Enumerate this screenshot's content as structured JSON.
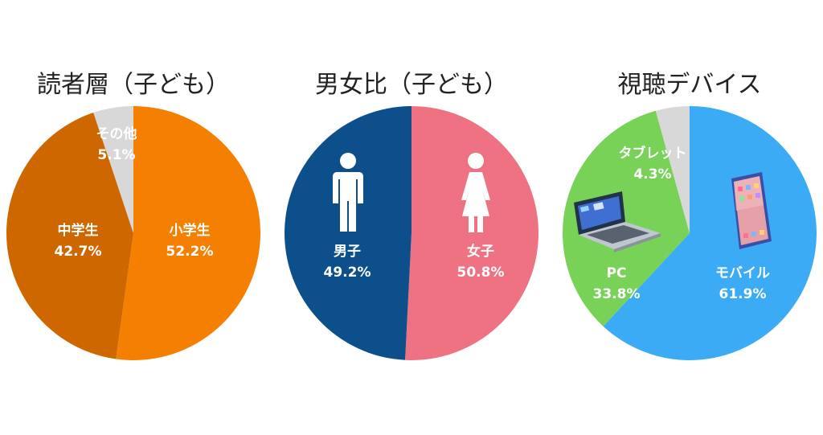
{
  "chart_data": [
    {
      "type": "pie",
      "title": "読者層（子ども）",
      "slices": [
        {
          "label": "小学生",
          "value": 52.2,
          "display": "52.2%",
          "color": "#f57f00",
          "text_color": "#ffffff"
        },
        {
          "label": "中学生",
          "value": 42.7,
          "display": "42.7%",
          "color": "#cf6700",
          "text_color": "#ffffff"
        },
        {
          "label": "その他",
          "value": 5.1,
          "display": "5.1%",
          "color": "#d8d8d8",
          "text_color": "#ffffff"
        }
      ]
    },
    {
      "type": "pie",
      "title": "男女比（子ども）",
      "slices": [
        {
          "label": "女子",
          "value": 50.8,
          "display": "50.8%",
          "color": "#ef7282",
          "text_color": "#ffffff"
        },
        {
          "label": "男子",
          "value": 49.2,
          "display": "49.2%",
          "color": "#0d4f8a",
          "text_color": "#ffffff"
        }
      ]
    },
    {
      "type": "pie",
      "title": "視聴デバイス",
      "slices": [
        {
          "label": "モバイル",
          "value": 61.9,
          "display": "61.9%",
          "color": "#3aabf4",
          "text_color": "#ffffff"
        },
        {
          "label": "PC",
          "value": 33.8,
          "display": "33.8%",
          "color": "#77d257",
          "text_color": "#ffffff"
        },
        {
          "label": "タブレット",
          "value": 4.3,
          "display": "4.3%",
          "color": "#d8d8d8",
          "text_color": "#ffffff"
        }
      ]
    }
  ],
  "icons": {
    "male": "male-figure-icon",
    "female": "female-figure-icon",
    "laptop": "laptop-icon",
    "smartphone": "smartphone-icon"
  }
}
